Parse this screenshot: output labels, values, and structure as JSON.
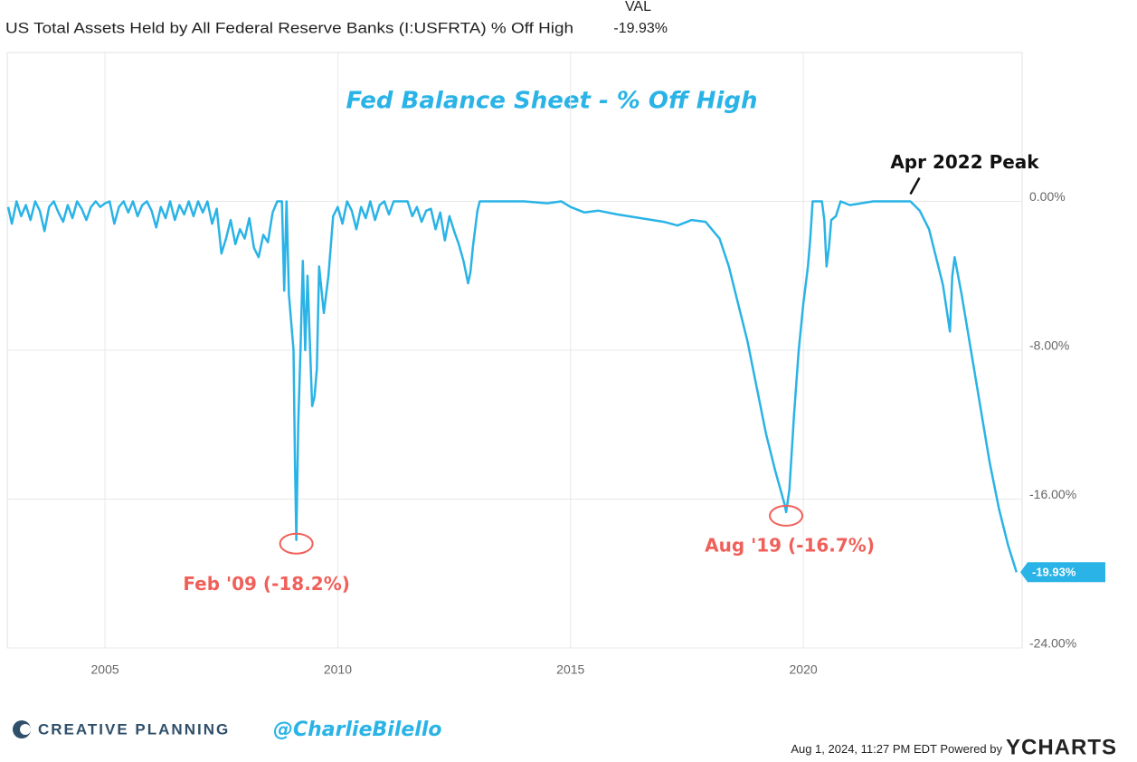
{
  "chart_data": {
    "type": "line",
    "header": "US Total Assets Held by All Federal Reserve Banks (I:USFRTA) % Off High",
    "value_heading": "VAL",
    "last_value": {
      "value": -19.93,
      "label": "-19.93%"
    },
    "title": "Fed Balance Sheet - % Off High",
    "annotations": [
      {
        "text": "Feb '09 (-18.2%)",
        "x": 2009.11,
        "y": -18.2,
        "color": "#f0605a"
      },
      {
        "text": "Aug '19 (-16.7%)",
        "x": 2019.63,
        "y": -16.7,
        "color": "#f0605a"
      },
      {
        "text": "Apr 2022 Peak",
        "x": 2022.3,
        "y": 0,
        "color": "#111111"
      }
    ],
    "xlim": [
      2002.9,
      2024.7
    ],
    "xticks": [
      2005,
      2010,
      2015,
      2020
    ],
    "ylim": [
      -24,
      8
    ],
    "yticks": [
      {
        "value": 0,
        "label": "0.00%"
      },
      {
        "value": -8,
        "label": "-8.00%"
      },
      {
        "value": -16,
        "label": "-16.00%"
      },
      {
        "value": -24,
        "label": "-24.00%"
      }
    ],
    "grid": true,
    "series": [
      {
        "name": "US Total Assets Held by All Federal Reserve Banks % Off High",
        "color": "#2ab3e6",
        "x": [
          2002.92,
          2003.0,
          2003.1,
          2003.2,
          2003.3,
          2003.4,
          2003.5,
          2003.6,
          2003.7,
          2003.8,
          2003.9,
          2004.0,
          2004.1,
          2004.2,
          2004.3,
          2004.4,
          2004.5,
          2004.6,
          2004.7,
          2004.8,
          2004.9,
          2005.0,
          2005.1,
          2005.2,
          2005.3,
          2005.4,
          2005.5,
          2005.6,
          2005.7,
          2005.8,
          2005.9,
          2006.0,
          2006.1,
          2006.2,
          2006.3,
          2006.4,
          2006.5,
          2006.6,
          2006.7,
          2006.8,
          2006.9,
          2007.0,
          2007.1,
          2007.2,
          2007.3,
          2007.4,
          2007.5,
          2007.6,
          2007.7,
          2007.8,
          2007.9,
          2008.0,
          2008.1,
          2008.2,
          2008.3,
          2008.4,
          2008.5,
          2008.6,
          2008.7,
          2008.8,
          2008.85,
          2008.9,
          2008.95,
          2009.05,
          2009.08,
          2009.11,
          2009.15,
          2009.2,
          2009.25,
          2009.3,
          2009.35,
          2009.4,
          2009.45,
          2009.5,
          2009.55,
          2009.6,
          2009.7,
          2009.8,
          2009.9,
          2010.0,
          2010.1,
          2010.2,
          2010.3,
          2010.4,
          2010.5,
          2010.6,
          2010.7,
          2010.8,
          2010.9,
          2011.0,
          2011.1,
          2011.2,
          2011.3,
          2011.5,
          2011.6,
          2011.7,
          2011.8,
          2011.9,
          2012.0,
          2012.1,
          2012.2,
          2012.3,
          2012.4,
          2012.5,
          2012.6,
          2012.7,
          2012.8,
          2012.85,
          2012.9,
          2013.0,
          2013.05,
          2014.0,
          2014.5,
          2014.8,
          2015.0,
          2015.3,
          2015.6,
          2016.0,
          2016.5,
          2017.0,
          2017.3,
          2017.6,
          2017.9,
          2018.2,
          2018.4,
          2018.6,
          2018.8,
          2019.0,
          2019.2,
          2019.4,
          2019.6,
          2019.63,
          2019.7,
          2019.8,
          2019.9,
          2020.0,
          2020.1,
          2020.15,
          2020.2,
          2020.4,
          2020.45,
          2020.5,
          2020.55,
          2020.6,
          2020.7,
          2020.8,
          2021.0,
          2021.5,
          2022.0,
          2022.3,
          2022.5,
          2022.7,
          2022.9,
          2023.0,
          2023.15,
          2023.2,
          2023.25,
          2023.4,
          2023.6,
          2023.8,
          2024.0,
          2024.2,
          2024.4,
          2024.58
        ],
        "values": [
          -0.3,
          -1.2,
          0,
          -0.8,
          -0.2,
          -1.0,
          0,
          -0.5,
          -1.6,
          -0.3,
          0,
          -0.6,
          -1.1,
          -0.2,
          -0.9,
          0,
          -0.4,
          -1.0,
          -0.3,
          0,
          -0.3,
          -0.1,
          0,
          -1.2,
          -0.3,
          0,
          -0.6,
          0,
          -0.8,
          -0.2,
          0,
          -0.5,
          -1.4,
          -0.3,
          -0.9,
          0,
          -1.0,
          -0.2,
          -0.7,
          0,
          -0.8,
          0,
          -0.6,
          0,
          -1.2,
          -0.4,
          -2.8,
          -2.0,
          -1.0,
          -2.3,
          -1.5,
          -2.0,
          -0.9,
          -2.5,
          -3.0,
          -1.8,
          -2.2,
          -0.6,
          0,
          0,
          -4.8,
          0,
          -5,
          -8,
          -14,
          -18.2,
          -12,
          -8,
          -3.2,
          -8,
          -4,
          -7.5,
          -11,
          -10.5,
          -9,
          -3.5,
          -6,
          -4,
          -0.8,
          -0.3,
          -1.2,
          0,
          -0.5,
          -1.5,
          -0.3,
          -0.9,
          0,
          -1.0,
          -0.2,
          0,
          -0.7,
          0,
          0,
          0,
          -0.8,
          -0.3,
          -1.1,
          -0.5,
          -0.4,
          -1.5,
          -0.6,
          -2.1,
          -0.8,
          -1.6,
          -2.3,
          -3.2,
          -4.4,
          -3.8,
          -2.5,
          -0.5,
          0,
          0,
          -0.1,
          0,
          -0.3,
          -0.6,
          -0.5,
          -0.7,
          -0.9,
          -1.1,
          -1.3,
          -1.0,
          -1.1,
          -2.0,
          -3.5,
          -5.5,
          -7.5,
          -10,
          -12.5,
          -14.5,
          -16.3,
          -16.7,
          -15.5,
          -11.5,
          -8,
          -5.5,
          -3.5,
          -2,
          0,
          0,
          -1,
          -3.5,
          -2.5,
          -1.0,
          -0.8,
          0,
          -0.2,
          0,
          0,
          0,
          -0.5,
          -1.5,
          -3.5,
          -4.5,
          -7,
          -4,
          -3,
          -5,
          -8,
          -11,
          -14,
          -16.5,
          -18.5,
          -19.93
        ]
      }
    ],
    "footer": {
      "brand": "CREATIVE PLANNING",
      "handle": "@CharlieBilello",
      "timestamp": "Aug 1, 2024, 11:27 PM EDT",
      "powered": "Powered by",
      "provider": "YCHARTS"
    }
  }
}
